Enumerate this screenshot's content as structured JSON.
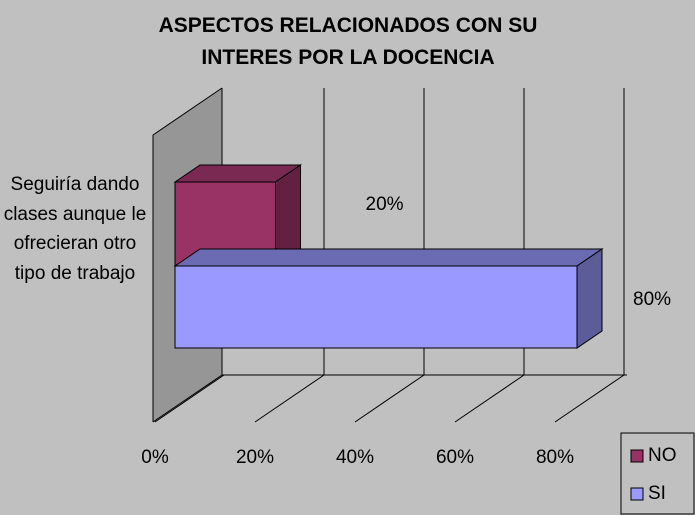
{
  "chart_data": {
    "type": "bar",
    "orientation": "horizontal",
    "title": "ASPECTOS RELACIONADOS CON SU INTERES POR LA DOCENCIA",
    "categories": [
      "Seguiría dando clases aunque le ofrecieran otro tipo de trabajo"
    ],
    "series": [
      {
        "name": "NO",
        "color": "#993366",
        "values": [
          20
        ],
        "value_labels": [
          "20%"
        ]
      },
      {
        "name": "SI",
        "color": "#9999ff",
        "values": [
          80
        ],
        "value_labels": [
          "80%"
        ]
      }
    ],
    "xlim": [
      0,
      80
    ],
    "xticks": [
      {
        "value": 0,
        "label": "0%"
      },
      {
        "value": 20,
        "label": "20%"
      },
      {
        "value": 40,
        "label": "40%"
      },
      {
        "value": 60,
        "label": "60%"
      },
      {
        "value": 80,
        "label": "80%"
      }
    ],
    "grid": true,
    "legend": "bottom-right"
  }
}
